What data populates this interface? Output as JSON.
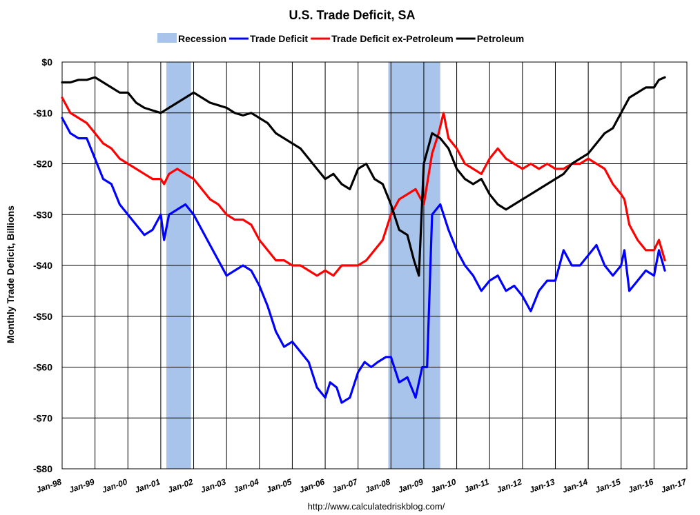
{
  "chart_data": {
    "type": "line",
    "title": "U.S. Trade Deficit, SA",
    "ylabel": "Monthly Trade Deficit, Billions",
    "xlabel": "",
    "source": "http://www.calculatedriskblog.com/",
    "ylim": [
      -80,
      0
    ],
    "y_ticks": [
      0,
      -10,
      -20,
      -30,
      -40,
      -50,
      -60,
      -70,
      -80
    ],
    "y_tick_labels": [
      "$0",
      "-$10",
      "-$20",
      "-$30",
      "-$40",
      "-$50",
      "-$60",
      "-$70",
      "-$80"
    ],
    "xlim": [
      1998.0,
      2017.0
    ],
    "x_ticks": [
      1998,
      1999,
      2000,
      2001,
      2002,
      2003,
      2004,
      2005,
      2006,
      2007,
      2008,
      2009,
      2010,
      2011,
      2012,
      2013,
      2014,
      2015,
      2016,
      2017
    ],
    "x_tick_labels": [
      "Jan-98",
      "Jan-99",
      "Jan-00",
      "Jan-01",
      "Jan-02",
      "Jan-03",
      "Jan-04",
      "Jan-05",
      "Jan-06",
      "Jan-07",
      "Jan-08",
      "Jan-09",
      "Jan-10",
      "Jan-11",
      "Jan-12",
      "Jan-13",
      "Jan-14",
      "Jan-15",
      "Jan-16",
      "Jan-17"
    ],
    "recessions": [
      [
        2001.17,
        2001.92
      ],
      [
        2007.92,
        2009.5
      ]
    ],
    "legend": [
      {
        "name": "Recession",
        "color": "#a9c4ea",
        "kind": "box"
      },
      {
        "name": "Trade Deficit",
        "color": "#0000ff",
        "kind": "line"
      },
      {
        "name": "Trade Deficit ex-Petroleum",
        "color": "#ff0000",
        "kind": "line"
      },
      {
        "name": "Petroleum",
        "color": "#000000",
        "kind": "line"
      }
    ],
    "series": [
      {
        "name": "Trade Deficit",
        "color": "#0000ff",
        "x": [
          1998.0,
          1998.25,
          1998.5,
          1998.75,
          1999.0,
          1999.25,
          1999.5,
          1999.75,
          2000.0,
          2000.25,
          2000.5,
          2000.75,
          2001.0,
          2001.1,
          2001.25,
          2001.5,
          2001.75,
          2002.0,
          2002.25,
          2002.5,
          2002.75,
          2003.0,
          2003.25,
          2003.5,
          2003.75,
          2004.0,
          2004.25,
          2004.5,
          2004.75,
          2005.0,
          2005.25,
          2005.5,
          2005.75,
          2006.0,
          2006.15,
          2006.35,
          2006.5,
          2006.75,
          2007.0,
          2007.2,
          2007.4,
          2007.6,
          2007.85,
          2008.0,
          2008.25,
          2008.5,
          2008.75,
          2008.95,
          2009.1,
          2009.25,
          2009.5,
          2009.75,
          2010.0,
          2010.25,
          2010.5,
          2010.75,
          2011.0,
          2011.25,
          2011.5,
          2011.75,
          2012.0,
          2012.25,
          2012.5,
          2012.75,
          2013.0,
          2013.25,
          2013.5,
          2013.75,
          2014.0,
          2014.25,
          2014.5,
          2014.75,
          2015.0,
          2015.1,
          2015.25,
          2015.5,
          2015.75,
          2016.0,
          2016.15,
          2016.33
        ],
        "values": [
          -11,
          -14,
          -15,
          -15,
          -19,
          -23,
          -24,
          -28,
          -30,
          -32,
          -34,
          -33,
          -30,
          -35,
          -30,
          -29,
          -28,
          -30,
          -33,
          -36,
          -39,
          -42,
          -41,
          -40,
          -41,
          -44,
          -48,
          -53,
          -56,
          -55,
          -57,
          -59,
          -64,
          -66,
          -63,
          -64,
          -67,
          -66,
          -61,
          -59,
          -60,
          -59,
          -58,
          -58,
          -63,
          -62,
          -66,
          -60,
          -60,
          -30,
          -28,
          -33,
          -37,
          -40,
          -42,
          -45,
          -43,
          -42,
          -45,
          -44,
          -46,
          -49,
          -45,
          -43,
          -43,
          -37,
          -40,
          -40,
          -38,
          -36,
          -40,
          -42,
          -40,
          -37,
          -45,
          -43,
          -41,
          -42,
          -37,
          -41
        ]
      },
      {
        "name": "Trade Deficit ex-Petroleum",
        "color": "#ff0000",
        "x": [
          1998.0,
          1998.25,
          1998.5,
          1998.75,
          1999.0,
          1999.25,
          1999.5,
          1999.75,
          2000.0,
          2000.25,
          2000.5,
          2000.75,
          2001.0,
          2001.1,
          2001.25,
          2001.5,
          2001.75,
          2002.0,
          2002.25,
          2002.5,
          2002.75,
          2003.0,
          2003.25,
          2003.5,
          2003.75,
          2004.0,
          2004.25,
          2004.5,
          2004.75,
          2005.0,
          2005.25,
          2005.5,
          2005.75,
          2006.0,
          2006.25,
          2006.5,
          2006.75,
          2007.0,
          2007.25,
          2007.5,
          2007.75,
          2008.0,
          2008.25,
          2008.5,
          2008.75,
          2009.0,
          2009.25,
          2009.45,
          2009.6,
          2009.75,
          2010.0,
          2010.25,
          2010.5,
          2010.75,
          2011.0,
          2011.25,
          2011.5,
          2011.75,
          2012.0,
          2012.25,
          2012.5,
          2012.75,
          2013.0,
          2013.25,
          2013.5,
          2013.75,
          2014.0,
          2014.25,
          2014.5,
          2014.75,
          2015.0,
          2015.1,
          2015.25,
          2015.5,
          2015.75,
          2016.0,
          2016.15,
          2016.33
        ],
        "values": [
          -7,
          -10,
          -11,
          -12,
          -14,
          -16,
          -17,
          -19,
          -20,
          -21,
          -22,
          -23,
          -23,
          -24,
          -22,
          -21,
          -22,
          -23,
          -25,
          -27,
          -28,
          -30,
          -31,
          -31,
          -32,
          -35,
          -37,
          -39,
          -39,
          -40,
          -40,
          -41,
          -42,
          -41,
          -42,
          -40,
          -40,
          -40,
          -39,
          -37,
          -35,
          -30,
          -27,
          -26,
          -25,
          -28,
          -18,
          -14,
          -10,
          -15,
          -17,
          -20,
          -21,
          -22,
          -19,
          -17,
          -19,
          -20,
          -21,
          -20,
          -21,
          -20,
          -21,
          -21,
          -20,
          -20,
          -19,
          -20,
          -21,
          -24,
          -26,
          -27,
          -32,
          -35,
          -37,
          -37,
          -35,
          -39
        ]
      },
      {
        "name": "Petroleum",
        "color": "#000000",
        "x": [
          1998.0,
          1998.25,
          1998.5,
          1998.75,
          1999.0,
          1999.25,
          1999.5,
          1999.75,
          2000.0,
          2000.25,
          2000.5,
          2000.75,
          2001.0,
          2001.25,
          2001.5,
          2001.75,
          2002.0,
          2002.25,
          2002.5,
          2002.75,
          2003.0,
          2003.25,
          2003.5,
          2003.75,
          2004.0,
          2004.25,
          2004.5,
          2004.75,
          2005.0,
          2005.25,
          2005.5,
          2005.75,
          2006.0,
          2006.25,
          2006.5,
          2006.75,
          2007.0,
          2007.25,
          2007.5,
          2007.75,
          2008.0,
          2008.25,
          2008.5,
          2008.7,
          2008.85,
          2009.0,
          2009.25,
          2009.5,
          2009.75,
          2010.0,
          2010.25,
          2010.5,
          2010.75,
          2011.0,
          2011.25,
          2011.5,
          2011.75,
          2012.0,
          2012.25,
          2012.5,
          2012.75,
          2013.0,
          2013.25,
          2013.5,
          2013.75,
          2014.0,
          2014.25,
          2014.5,
          2014.75,
          2015.0,
          2015.25,
          2015.5,
          2015.75,
          2016.0,
          2016.15,
          2016.33
        ],
        "values": [
          -4,
          -4,
          -3.5,
          -3.5,
          -3,
          -4,
          -5,
          -6,
          -6,
          -8,
          -9,
          -9.5,
          -10,
          -9,
          -8,
          -7,
          -6,
          -7,
          -8,
          -8.5,
          -9,
          -10,
          -10.5,
          -10,
          -11,
          -12,
          -14,
          -15,
          -16,
          -17,
          -19,
          -21,
          -23,
          -22,
          -24,
          -25,
          -21,
          -20,
          -23,
          -24,
          -28,
          -33,
          -34,
          -39,
          -42,
          -20,
          -14,
          -15,
          -17,
          -21,
          -23,
          -24,
          -23,
          -26,
          -28,
          -29,
          -28,
          -27,
          -26,
          -25,
          -24,
          -23,
          -22,
          -20,
          -19,
          -18,
          -16,
          -14,
          -13,
          -10,
          -7,
          -6,
          -5,
          -5,
          -3.5,
          -3
        ]
      }
    ]
  }
}
